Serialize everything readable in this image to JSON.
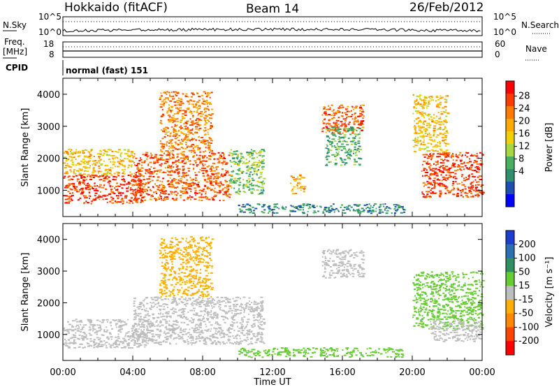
{
  "header": {
    "station": "Hokkaido (fitACF)",
    "beam": "Beam 14",
    "date": "26/Feb/2012"
  },
  "strips": {
    "nsky_label": "N.Sky",
    "nsky_ticks": [
      "10^5",
      "10^0"
    ],
    "nsearch_label": "N.Search",
    "freq_label_1": "Freq.",
    "freq_label_2": "[MHz]",
    "freq_ticks": [
      "18",
      "8"
    ],
    "nave_label": "Nave",
    "nave_ticks": [
      "60",
      "0"
    ],
    "cpid_label": "CPID",
    "cpid_text": "normal (fast) 151"
  },
  "axes": {
    "x_label": "Time UT",
    "x_ticks": [
      "00:00",
      "04:00",
      "08:00",
      "12:00",
      "16:00",
      "20:00",
      "00:00"
    ],
    "y_label": "Slant Range [km]",
    "y_ticks": [
      "1000",
      "2000",
      "3000",
      "4000"
    ]
  },
  "colorbars": {
    "power_label": "Power [dB]",
    "power_ticks": [
      "28",
      "24",
      "20",
      "16",
      "12",
      "8",
      "4"
    ],
    "power_colors": [
      "#ff0000",
      "#ff3a00",
      "#ff7a00",
      "#ffaa00",
      "#f0d000",
      "#a8d840",
      "#48b060",
      "#2f8f6f",
      "#1e4fb0",
      "#0000ff"
    ],
    "velocity_label": "Velocity [m s⁻¹]",
    "velocity_ticks": [
      "200",
      "100",
      "50",
      "15",
      "-15",
      "-50",
      "-100",
      "-200"
    ],
    "velocity_colors": [
      "#1e3cd0",
      "#2a70b0",
      "#2f8f60",
      "#66cc33",
      "#bebebe",
      "#ffb000",
      "#ff8800",
      "#ff4400",
      "#ff0000"
    ]
  },
  "chart_data": [
    {
      "type": "heatmap",
      "title": "Power",
      "x": [
        "00:00",
        "04:00",
        "08:00",
        "12:00",
        "16:00",
        "20:00",
        "00:00"
      ],
      "xlabel": "Time UT",
      "ylabel": "Slant Range [km]",
      "ylim": [
        180,
        4500
      ],
      "colorbar": "Power [dB]",
      "regions": [
        {
          "t_start": 0.0,
          "t_end": 4.5,
          "r_min": 600,
          "r_max": 1500,
          "value": 26
        },
        {
          "t_start": 0.0,
          "t_end": 4.0,
          "r_min": 1500,
          "r_max": 2300,
          "value": 18
        },
        {
          "t_start": 4.0,
          "t_end": 9.5,
          "r_min": 700,
          "r_max": 2200,
          "value": 24
        },
        {
          "t_start": 5.5,
          "t_end": 8.5,
          "r_min": 2200,
          "r_max": 4100,
          "value": 22
        },
        {
          "t_start": 9.5,
          "t_end": 11.5,
          "r_min": 900,
          "r_max": 2300,
          "value": 12
        },
        {
          "t_start": 13.0,
          "t_end": 13.8,
          "r_min": 900,
          "r_max": 1500,
          "value": 20
        },
        {
          "t_start": 10.0,
          "t_end": 19.5,
          "r_min": 300,
          "r_max": 600,
          "value": 8
        },
        {
          "t_start": 14.8,
          "t_end": 17.2,
          "r_min": 2800,
          "r_max": 3700,
          "value": 24
        },
        {
          "t_start": 15.0,
          "t_end": 17.0,
          "r_min": 1800,
          "r_max": 3000,
          "value": 10
        },
        {
          "t_start": 20.5,
          "t_end": 24.0,
          "r_min": 800,
          "r_max": 2200,
          "value": 26
        },
        {
          "t_start": 20.0,
          "t_end": 22.0,
          "r_min": 2200,
          "r_max": 4000,
          "value": 18
        }
      ]
    },
    {
      "type": "heatmap",
      "title": "Velocity",
      "x": [
        "00:00",
        "04:00",
        "08:00",
        "12:00",
        "16:00",
        "20:00",
        "00:00"
      ],
      "xlabel": "Time UT",
      "ylabel": "Slant Range [km]",
      "ylim": [
        180,
        4500
      ],
      "colorbar": "Velocity [m s⁻¹]",
      "regions": [
        {
          "t_start": 0.0,
          "t_end": 5.0,
          "r_min": 600,
          "r_max": 1500,
          "value": 0
        },
        {
          "t_start": 4.0,
          "t_end": 11.5,
          "r_min": 700,
          "r_max": 2200,
          "value": 0
        },
        {
          "t_start": 5.5,
          "t_end": 8.5,
          "r_min": 2200,
          "r_max": 4100,
          "value": -30
        },
        {
          "t_start": 10.0,
          "t_end": 19.5,
          "r_min": 300,
          "r_max": 600,
          "value": 40
        },
        {
          "t_start": 14.8,
          "t_end": 17.2,
          "r_min": 2800,
          "r_max": 3700,
          "value": 0
        },
        {
          "t_start": 20.0,
          "t_end": 24.0,
          "r_min": 1200,
          "r_max": 3000,
          "value": 40
        },
        {
          "t_start": 21.0,
          "t_end": 24.0,
          "r_min": 800,
          "r_max": 1500,
          "value": 0
        }
      ]
    }
  ]
}
